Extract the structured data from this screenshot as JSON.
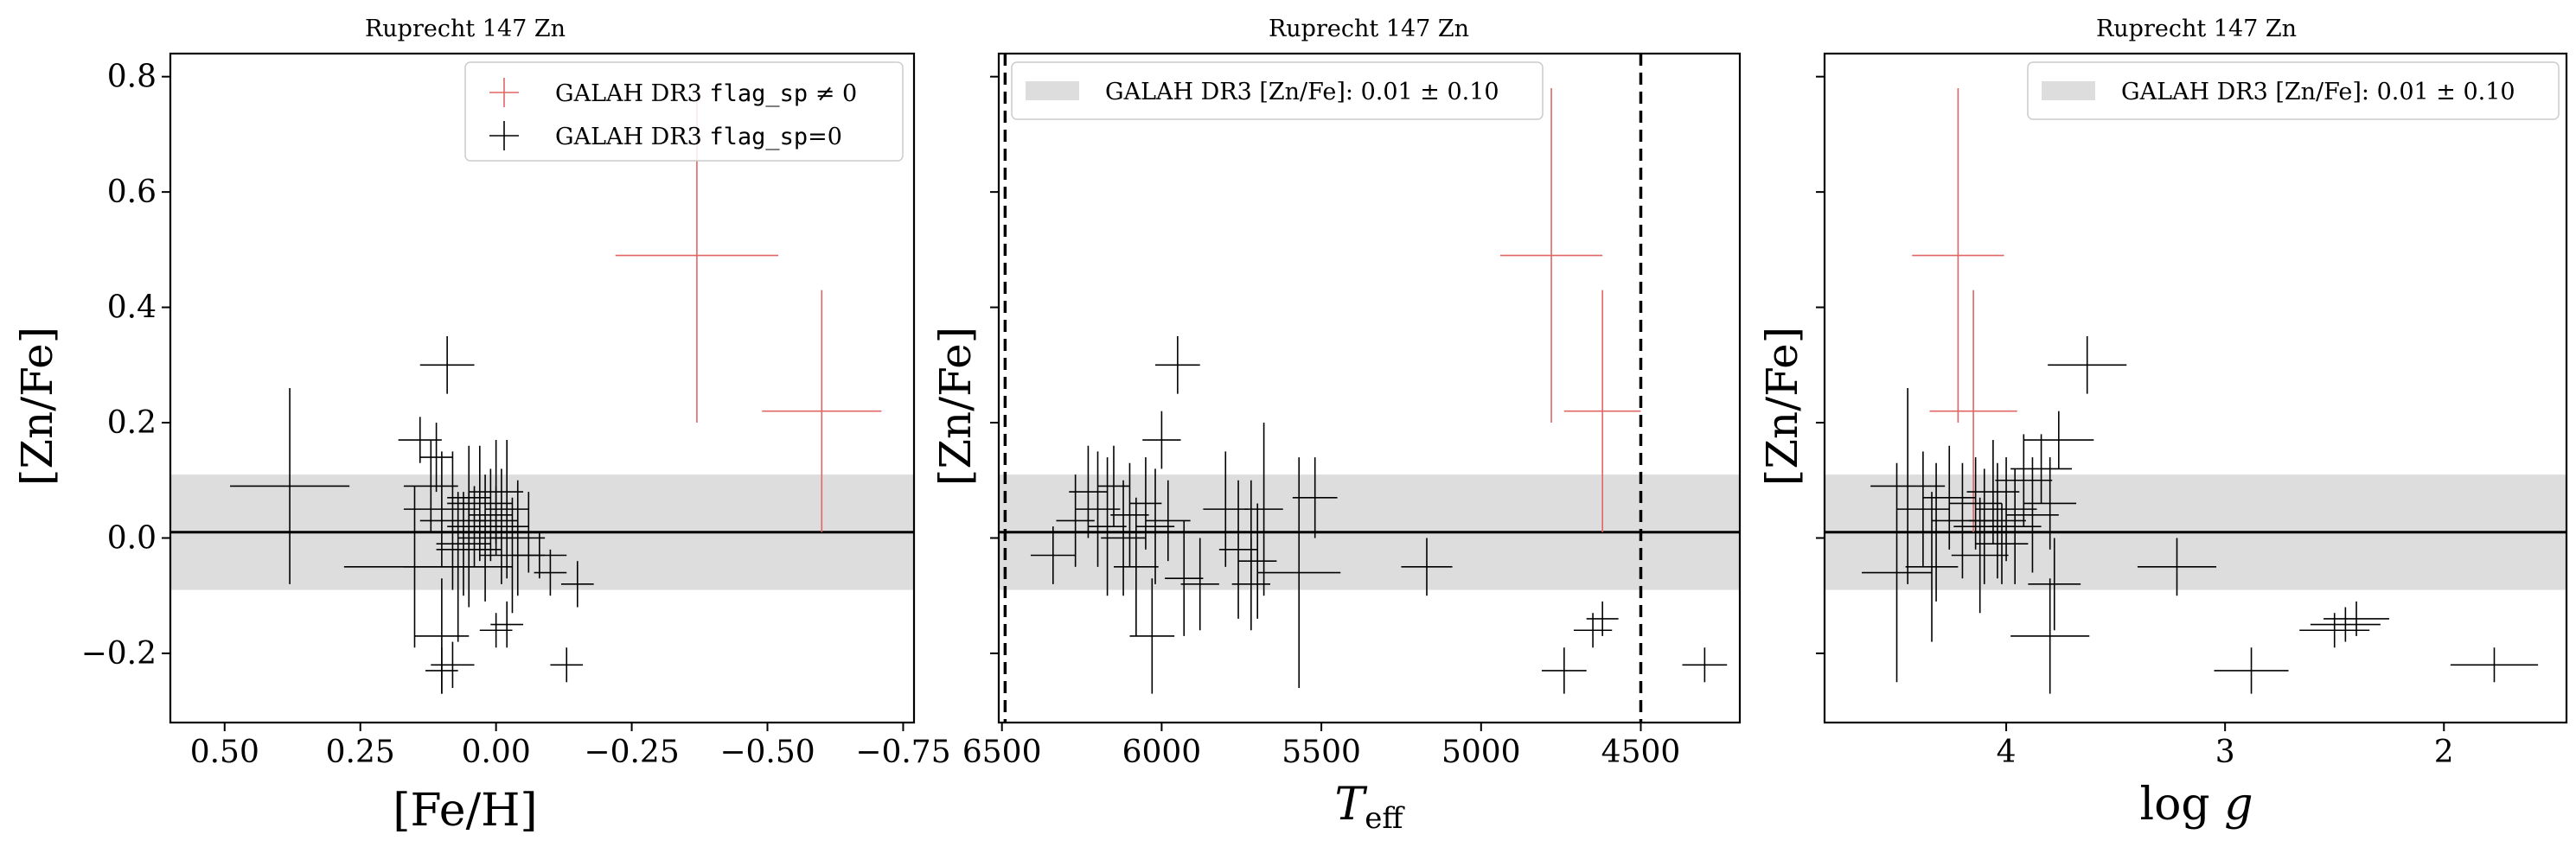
{
  "chart_data": [
    {
      "type": "scatter",
      "title": "Ruprecht 147 Zn",
      "xlabel": "[Fe/H]",
      "ylabel": "[Zn/Fe]",
      "xlim": [
        0.6,
        -0.77
      ],
      "ylim": [
        -0.32,
        0.84
      ],
      "x_ticks": [
        0.5,
        0.25,
        0.0,
        -0.25,
        -0.5,
        -0.75
      ],
      "x_tick_labels": [
        "0.50",
        "0.25",
        "0.00",
        "−0.25",
        "−0.50",
        "−0.75"
      ],
      "y_ticks": [
        -0.2,
        0.0,
        0.2,
        0.4,
        0.6,
        0.8
      ],
      "y_tick_labels": [
        "−0.2",
        "0.0",
        "0.2",
        "0.4",
        "0.6",
        "0.8"
      ],
      "band": {
        "center": 0.01,
        "halfwidth": 0.1,
        "color": "#dddddd"
      },
      "hline": 0.01,
      "legend": {
        "placement": "top-right",
        "entries": [
          {
            "prefix": "GALAH DR3 ",
            "code": "flag_sp",
            "suffix": " ≠ 0",
            "color": "#e06666"
          },
          {
            "prefix": "GALAH DR3 ",
            "code": "flag_sp",
            "suffix": "=0",
            "color": "#000000"
          }
        ]
      },
      "series": [
        {
          "name": "GALAH DR3 flag_sp ≠ 0",
          "color": "#e06666",
          "points": [
            {
              "x": -0.37,
              "y": 0.49,
              "xerr": 0.15,
              "yerr": 0.29
            },
            {
              "x": -0.6,
              "y": 0.22,
              "xerr": 0.11,
              "yerr": 0.21
            }
          ]
        },
        {
          "name": "GALAH DR3 flag_sp=0",
          "color": "#000000",
          "points": [
            {
              "x": 0.38,
              "y": 0.09,
              "xerr": 0.11,
              "yerr": 0.17
            },
            {
              "x": 0.09,
              "y": 0.3,
              "xerr": 0.05,
              "yerr": 0.05
            },
            {
              "x": 0.14,
              "y": 0.17,
              "xerr": 0.04,
              "yerr": 0.04
            },
            {
              "x": 0.11,
              "y": 0.14,
              "xerr": 0.03,
              "yerr": 0.06
            },
            {
              "x": 0.12,
              "y": 0.09,
              "xerr": 0.05,
              "yerr": 0.08
            },
            {
              "x": 0.1,
              "y": 0.05,
              "xerr": 0.07,
              "yerr": 0.1
            },
            {
              "x": 0.08,
              "y": 0.03,
              "xerr": 0.06,
              "yerr": 0.12
            },
            {
              "x": 0.05,
              "y": 0.07,
              "xerr": 0.04,
              "yerr": 0.09
            },
            {
              "x": 0.04,
              "y": 0.02,
              "xerr": 0.05,
              "yerr": 0.07
            },
            {
              "x": 0.03,
              "y": 0.06,
              "xerr": 0.06,
              "yerr": 0.1
            },
            {
              "x": 0.02,
              "y": 0.0,
              "xerr": 0.05,
              "yerr": 0.11
            },
            {
              "x": 0.01,
              "y": 0.04,
              "xerr": 0.04,
              "yerr": 0.08
            },
            {
              "x": 0.0,
              "y": 0.08,
              "xerr": 0.05,
              "yerr": 0.09
            },
            {
              "x": -0.01,
              "y": 0.02,
              "xerr": 0.05,
              "yerr": 0.1
            },
            {
              "x": -0.02,
              "y": 0.05,
              "xerr": 0.04,
              "yerr": 0.12
            },
            {
              "x": -0.03,
              "y": -0.03,
              "xerr": 0.06,
              "yerr": 0.1
            },
            {
              "x": 0.0,
              "y": 0.03,
              "xerr": 0.04,
              "yerr": 0.06
            },
            {
              "x": 0.06,
              "y": -0.01,
              "xerr": 0.05,
              "yerr": 0.09
            },
            {
              "x": 0.15,
              "y": -0.05,
              "xerr": 0.13,
              "yerr": 0.14
            },
            {
              "x": 0.07,
              "y": -0.05,
              "xerr": 0.1,
              "yerr": 0.13
            },
            {
              "x": 0.05,
              "y": -0.02,
              "xerr": 0.06,
              "yerr": 0.1
            },
            {
              "x": -0.04,
              "y": 0.0,
              "xerr": 0.05,
              "yerr": 0.1
            },
            {
              "x": -0.06,
              "y": 0.01,
              "xerr": 0.06,
              "yerr": 0.07
            },
            {
              "x": -0.08,
              "y": -0.03,
              "xerr": 0.05,
              "yerr": 0.04
            },
            {
              "x": -0.1,
              "y": -0.06,
              "xerr": 0.03,
              "yerr": 0.04
            },
            {
              "x": -0.15,
              "y": -0.08,
              "xerr": 0.03,
              "yerr": 0.04
            },
            {
              "x": 0.1,
              "y": -0.17,
              "xerr": 0.05,
              "yerr": 0.1
            },
            {
              "x": 0.08,
              "y": -0.22,
              "xerr": 0.04,
              "yerr": 0.04
            },
            {
              "x": 0.1,
              "y": -0.23,
              "xerr": 0.03,
              "yerr": 0.04
            },
            {
              "x": 0.0,
              "y": -0.16,
              "xerr": 0.03,
              "yerr": 0.03
            },
            {
              "x": -0.02,
              "y": -0.15,
              "xerr": 0.03,
              "yerr": 0.04
            },
            {
              "x": -0.13,
              "y": -0.22,
              "xerr": 0.03,
              "yerr": 0.03
            }
          ]
        }
      ]
    },
    {
      "type": "scatter",
      "title": "Ruprecht 147 Zn",
      "xlabel": "T_eff",
      "ylabel": "[Zn/Fe]",
      "xlim": [
        6510,
        4190
      ],
      "ylim": [
        -0.32,
        0.84
      ],
      "x_ticks": [
        6500,
        6000,
        5500,
        5000,
        4500
      ],
      "x_tick_labels": [
        "6500",
        "6000",
        "5500",
        "5000",
        "4500"
      ],
      "y_ticks": [
        -0.2,
        0.0,
        0.2,
        0.4,
        0.6,
        0.8
      ],
      "band": {
        "center": 0.01,
        "halfwidth": 0.1,
        "color": "#dddddd"
      },
      "hline": 0.01,
      "vlines": [
        6490,
        4500
      ],
      "legend": {
        "placement": "top-left",
        "entries": [
          {
            "text": "GALAH DR3 [Zn/Fe]: 0.01 ± 0.10"
          }
        ]
      },
      "series": [
        {
          "name": "GALAH DR3 flag_sp ≠ 0",
          "color": "#e06666",
          "points": [
            {
              "x": 4780,
              "y": 0.49,
              "xerr": 160,
              "yerr": 0.29
            },
            {
              "x": 4620,
              "y": 0.22,
              "xerr": 120,
              "yerr": 0.21
            }
          ]
        },
        {
          "name": "GALAH DR3 flag_sp=0",
          "color": "#000000",
          "points": [
            {
              "x": 5950,
              "y": 0.3,
              "xerr": 70,
              "yerr": 0.05
            },
            {
              "x": 6000,
              "y": 0.17,
              "xerr": 60,
              "yerr": 0.05
            },
            {
              "x": 6340,
              "y": -0.03,
              "xerr": 70,
              "yerr": 0.05
            },
            {
              "x": 6270,
              "y": 0.03,
              "xerr": 60,
              "yerr": 0.08
            },
            {
              "x": 6230,
              "y": 0.08,
              "xerr": 60,
              "yerr": 0.08
            },
            {
              "x": 6200,
              "y": 0.05,
              "xerr": 70,
              "yerr": 0.1
            },
            {
              "x": 6170,
              "y": 0.02,
              "xerr": 60,
              "yerr": 0.12
            },
            {
              "x": 6150,
              "y": 0.09,
              "xerr": 50,
              "yerr": 0.07
            },
            {
              "x": 6120,
              "y": 0.0,
              "xerr": 70,
              "yerr": 0.1
            },
            {
              "x": 6100,
              "y": 0.04,
              "xerr": 60,
              "yerr": 0.09
            },
            {
              "x": 6080,
              "y": -0.05,
              "xerr": 70,
              "yerr": 0.12
            },
            {
              "x": 6050,
              "y": 0.06,
              "xerr": 50,
              "yerr": 0.08
            },
            {
              "x": 6020,
              "y": 0.02,
              "xerr": 60,
              "yerr": 0.1
            },
            {
              "x": 5980,
              "y": 0.03,
              "xerr": 70,
              "yerr": 0.07
            },
            {
              "x": 6030,
              "y": -0.17,
              "xerr": 70,
              "yerr": 0.1
            },
            {
              "x": 5930,
              "y": -0.07,
              "xerr": 60,
              "yerr": 0.1
            },
            {
              "x": 5880,
              "y": -0.08,
              "xerr": 60,
              "yerr": 0.08
            },
            {
              "x": 5800,
              "y": 0.05,
              "xerr": 70,
              "yerr": 0.1
            },
            {
              "x": 5760,
              "y": -0.02,
              "xerr": 60,
              "yerr": 0.12
            },
            {
              "x": 5720,
              "y": 0.01,
              "xerr": 70,
              "yerr": 0.09
            },
            {
              "x": 5700,
              "y": -0.04,
              "xerr": 60,
              "yerr": 0.1
            },
            {
              "x": 5680,
              "y": 0.05,
              "xerr": 60,
              "yerr": 0.15
            },
            {
              "x": 5720,
              "y": -0.08,
              "xerr": 60,
              "yerr": 0.08
            },
            {
              "x": 5520,
              "y": 0.07,
              "xerr": 70,
              "yerr": 0.07
            },
            {
              "x": 5570,
              "y": -0.06,
              "xerr": 130,
              "yerr": 0.2
            },
            {
              "x": 5170,
              "y": -0.05,
              "xerr": 80,
              "yerr": 0.05
            },
            {
              "x": 4740,
              "y": -0.23,
              "xerr": 70,
              "yerr": 0.04
            },
            {
              "x": 4650,
              "y": -0.16,
              "xerr": 60,
              "yerr": 0.03
            },
            {
              "x": 4620,
              "y": -0.14,
              "xerr": 50,
              "yerr": 0.03
            },
            {
              "x": 4300,
              "y": -0.22,
              "xerr": 70,
              "yerr": 0.03
            }
          ]
        }
      ]
    },
    {
      "type": "scatter",
      "title": "Ruprecht 147 Zn",
      "xlabel": "log g",
      "ylabel": "[Zn/Fe]",
      "xlim": [
        4.83,
        1.44
      ],
      "ylim": [
        -0.32,
        0.84
      ],
      "x_ticks": [
        4,
        3,
        2
      ],
      "x_tick_labels": [
        "4",
        "3",
        "2"
      ],
      "y_ticks": [
        -0.2,
        0.0,
        0.2,
        0.4,
        0.6,
        0.8
      ],
      "band": {
        "center": 0.01,
        "halfwidth": 0.1,
        "color": "#dddddd"
      },
      "hline": 0.01,
      "legend": {
        "placement": "top-right",
        "entries": [
          {
            "text": "GALAH DR3 [Zn/Fe]: 0.01 ± 0.10"
          }
        ]
      },
      "series": [
        {
          "name": "GALAH DR3 flag_sp ≠ 0",
          "color": "#e06666",
          "points": [
            {
              "x": 4.22,
              "y": 0.49,
              "xerr": 0.21,
              "yerr": 0.29
            },
            {
              "x": 4.15,
              "y": 0.22,
              "xerr": 0.2,
              "yerr": 0.21
            }
          ]
        },
        {
          "name": "GALAH DR3 flag_sp=0",
          "color": "#000000",
          "points": [
            {
              "x": 3.63,
              "y": 0.3,
              "xerr": 0.18,
              "yerr": 0.05
            },
            {
              "x": 3.76,
              "y": 0.17,
              "xerr": 0.16,
              "yerr": 0.05
            },
            {
              "x": 4.45,
              "y": 0.09,
              "xerr": 0.17,
              "yerr": 0.17
            },
            {
              "x": 4.38,
              "y": 0.05,
              "xerr": 0.12,
              "yerr": 0.1
            },
            {
              "x": 4.32,
              "y": 0.01,
              "xerr": 0.14,
              "yerr": 0.12
            },
            {
              "x": 4.26,
              "y": 0.07,
              "xerr": 0.12,
              "yerr": 0.09
            },
            {
              "x": 4.2,
              "y": 0.03,
              "xerr": 0.14,
              "yerr": 0.1
            },
            {
              "x": 4.14,
              "y": 0.06,
              "xerr": 0.12,
              "yerr": 0.08
            },
            {
              "x": 4.1,
              "y": 0.02,
              "xerr": 0.14,
              "yerr": 0.1
            },
            {
              "x": 4.06,
              "y": 0.08,
              "xerr": 0.12,
              "yerr": 0.09
            },
            {
              "x": 4.04,
              "y": 0.03,
              "xerr": 0.13,
              "yerr": 0.1
            },
            {
              "x": 4.02,
              "y": -0.01,
              "xerr": 0.12,
              "yerr": 0.07
            },
            {
              "x": 4.0,
              "y": 0.05,
              "xerr": 0.14,
              "yerr": 0.09
            },
            {
              "x": 3.96,
              "y": 0.02,
              "xerr": 0.12,
              "yerr": 0.1
            },
            {
              "x": 3.92,
              "y": 0.1,
              "xerr": 0.13,
              "yerr": 0.08
            },
            {
              "x": 3.88,
              "y": 0.04,
              "xerr": 0.12,
              "yerr": 0.1
            },
            {
              "x": 3.84,
              "y": 0.12,
              "xerr": 0.14,
              "yerr": 0.06
            },
            {
              "x": 3.8,
              "y": 0.06,
              "xerr": 0.12,
              "yerr": 0.08
            },
            {
              "x": 4.5,
              "y": -0.06,
              "xerr": 0.16,
              "yerr": 0.19
            },
            {
              "x": 4.34,
              "y": -0.05,
              "xerr": 0.12,
              "yerr": 0.13
            },
            {
              "x": 4.12,
              "y": -0.03,
              "xerr": 0.13,
              "yerr": 0.1
            },
            {
              "x": 3.78,
              "y": -0.08,
              "xerr": 0.12,
              "yerr": 0.08
            },
            {
              "x": 3.8,
              "y": -0.17,
              "xerr": 0.18,
              "yerr": 0.1
            },
            {
              "x": 3.22,
              "y": -0.05,
              "xerr": 0.18,
              "yerr": 0.05
            },
            {
              "x": 2.88,
              "y": -0.23,
              "xerr": 0.17,
              "yerr": 0.04
            },
            {
              "x": 2.5,
              "y": -0.16,
              "xerr": 0.16,
              "yerr": 0.03
            },
            {
              "x": 2.45,
              "y": -0.15,
              "xerr": 0.16,
              "yerr": 0.03
            },
            {
              "x": 2.4,
              "y": -0.14,
              "xerr": 0.15,
              "yerr": 0.03
            },
            {
              "x": 1.77,
              "y": -0.22,
              "xerr": 0.2,
              "yerr": 0.03
            }
          ]
        }
      ]
    }
  ]
}
